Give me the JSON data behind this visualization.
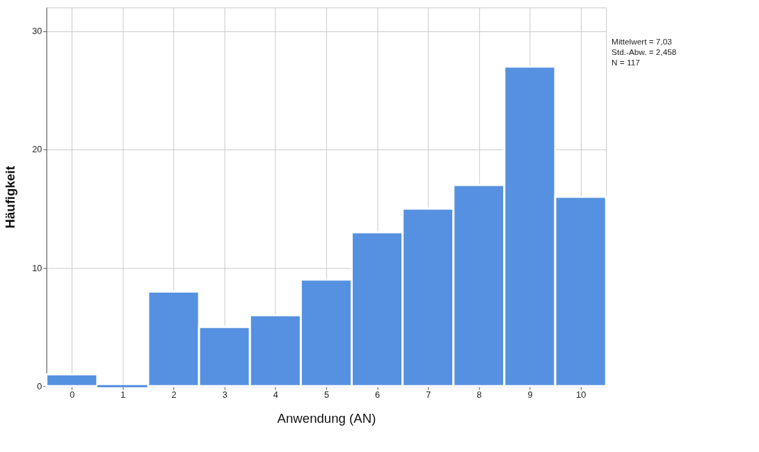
{
  "chart_data": {
    "type": "histogram",
    "xlabel": "Anwendung (AN)",
    "ylabel": "Häufigkeit",
    "bins": [
      -0.5,
      0.5,
      1.5,
      2.5,
      3.5,
      4.5,
      5.5,
      6.5,
      7.5,
      8.5,
      9.5,
      10.5
    ],
    "values": [
      1,
      0,
      8,
      5,
      6,
      9,
      13,
      15,
      17,
      27,
      16
    ],
    "color": "#5591e0",
    "xlim": [
      -0.5,
      10.5
    ],
    "xticks": [
      0,
      1,
      2,
      3,
      4,
      5,
      6,
      7,
      8,
      9,
      10
    ],
    "ylim": [
      0,
      32
    ],
    "yticks": [
      0,
      10,
      20,
      30
    ],
    "grid": true,
    "annotations": [
      "Mittelwert = 7,03",
      "Std.-Abw. = 2,458",
      "N = 117"
    ]
  }
}
